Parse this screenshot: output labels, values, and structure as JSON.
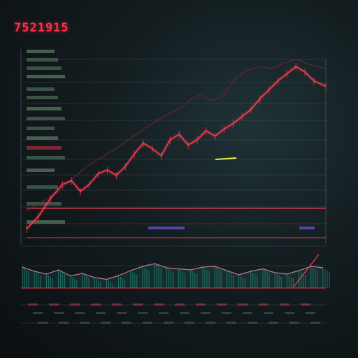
{
  "header": {
    "title": "7521915",
    "subtitle": ""
  },
  "colors": {
    "background": "#10181b",
    "price_line": "#ff3b50",
    "faint_line": "#7a2232",
    "volume": "#2fb3a0",
    "highlight": "#e6f04a",
    "grid": "#5a6b70",
    "accent_purple": "#8a5cff"
  },
  "chart_data": [
    {
      "type": "line",
      "title": "7521915",
      "xlabel": "",
      "ylabel": "",
      "grid": true,
      "legend": "none",
      "xlim": [
        0,
        100
      ],
      "ylim": [
        0,
        100
      ],
      "series": [
        {
          "x": [
            0,
            4,
            8,
            12,
            15,
            18,
            21,
            24,
            27,
            30,
            33,
            36,
            39,
            42,
            45,
            48,
            51,
            54,
            57,
            60,
            63,
            66,
            69,
            72,
            75,
            78,
            81,
            84,
            87,
            90,
            93,
            96,
            100
          ],
          "values": [
            5,
            12,
            22,
            30,
            32,
            26,
            30,
            36,
            38,
            35,
            40,
            47,
            53,
            50,
            46,
            55,
            58,
            52,
            55,
            60,
            57,
            61,
            64,
            68,
            72,
            78,
            83,
            88,
            92,
            96,
            93,
            88,
            85
          ]
        },
        {
          "x": [
            0,
            10,
            20,
            30,
            40,
            48,
            52,
            55,
            58,
            62,
            66,
            70,
            74,
            78,
            82,
            86,
            90,
            95,
            100
          ],
          "values": [
            15,
            25,
            40,
            50,
            62,
            70,
            73,
            78,
            80,
            77,
            80,
            90,
            94,
            96,
            95,
            98,
            100,
            97,
            95
          ]
        }
      ]
    },
    {
      "type": "area",
      "title": "",
      "xlabel": "",
      "ylabel": "",
      "grid": true,
      "legend": "none",
      "xlim": [
        0,
        100
      ],
      "ylim": [
        0,
        100
      ],
      "series": [
        {
          "x": [
            0,
            4,
            8,
            12,
            16,
            20,
            24,
            28,
            32,
            36,
            40,
            44,
            48,
            52,
            56,
            60,
            64,
            68,
            72,
            76,
            80,
            84,
            88,
            92,
            96,
            100
          ],
          "values": [
            60,
            48,
            40,
            52,
            35,
            42,
            30,
            25,
            36,
            50,
            62,
            70,
            58,
            55,
            52,
            60,
            62,
            50,
            38,
            48,
            55,
            44,
            40,
            50,
            62,
            58
          ]
        }
      ]
    }
  ]
}
